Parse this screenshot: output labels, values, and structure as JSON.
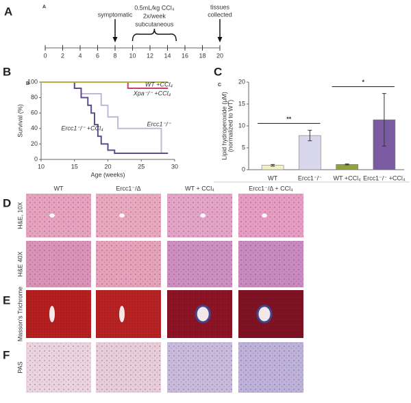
{
  "panel_labels": {
    "A": "A",
    "A_small": "A",
    "B": "B",
    "B_small": "B",
    "C": "C",
    "C_small": "C",
    "D": "D",
    "E": "E",
    "F": "F"
  },
  "timeline": {
    "xlim": [
      0,
      20
    ],
    "xticks": [
      0,
      2,
      4,
      6,
      8,
      10,
      12,
      14,
      16,
      18,
      20
    ],
    "events": [
      {
        "lines": [
          "symptomatic"
        ],
        "at": 8
      },
      {
        "lines": [
          "tissues",
          "collected"
        ],
        "at": 20
      }
    ],
    "treatment": {
      "lines": [
        "0.5mL/kg CCl₄",
        "2x/week",
        "subcutaneous"
      ],
      "from": 10,
      "to": 15
    }
  },
  "chart_data": [
    {
      "type": "line",
      "step": true,
      "xlabel": "Age (weeks)",
      "ylabel": "Survival (%)",
      "xlim": [
        10,
        30
      ],
      "xticks": [
        10,
        15,
        20,
        25,
        30
      ],
      "ylim": [
        0,
        100
      ],
      "yticks": [
        0,
        20,
        40,
        60,
        80,
        100
      ],
      "series": [
        {
          "name": "WT +CCl₄",
          "color": "#b3b13a",
          "x": [
            10,
            29
          ],
          "values": [
            100,
            100
          ]
        },
        {
          "name": "Xpa⁻/⁻ +CCl₄",
          "color": "#c3406e",
          "x": [
            10,
            23,
            23,
            29
          ],
          "values": [
            100,
            100,
            92,
            92
          ]
        },
        {
          "name": "Ercc1⁻/⁻",
          "color": "#bdb8dc",
          "x": [
            10,
            15,
            15,
            16,
            16,
            19,
            19,
            20,
            20,
            21.5,
            21.5,
            28,
            28,
            29
          ],
          "values": [
            100,
            100,
            92,
            92,
            85,
            85,
            70,
            70,
            55,
            55,
            40,
            40,
            8,
            8
          ]
        },
        {
          "name": "Ercc1⁻/⁻ +CCl₄",
          "color": "#5d4b8e",
          "x": [
            10,
            15,
            15,
            16,
            16,
            17,
            17,
            17.5,
            17.5,
            18,
            18,
            18.5,
            18.5,
            19,
            19,
            20,
            20,
            21,
            21,
            29
          ],
          "values": [
            100,
            100,
            92,
            92,
            80,
            80,
            70,
            70,
            60,
            60,
            45,
            45,
            30,
            30,
            20,
            20,
            12,
            12,
            8,
            8
          ]
        }
      ]
    },
    {
      "type": "bar",
      "ylabel": [
        "Lipid hydroperoxide (μM)",
        "(normalized to WT)"
      ],
      "categories": [
        "WT",
        "Ercc1⁻/⁻",
        "WT +CCl₄",
        "Ercc1⁻/⁻ +CCl₄"
      ],
      "values": [
        1.0,
        7.8,
        1.2,
        11.4
      ],
      "errors": [
        0.2,
        1.2,
        0.1,
        6.0
      ],
      "colors": [
        "#f1f1c4",
        "#d9d7eb",
        "#8ea33b",
        "#7a5aa0"
      ],
      "ylim": [
        0,
        20
      ],
      "yticks": [
        0,
        5,
        10,
        15,
        20
      ],
      "significance": [
        {
          "text": "**",
          "between": [
            0,
            1
          ]
        },
        {
          "text": "*",
          "between": [
            2,
            3
          ]
        }
      ]
    }
  ],
  "histology": {
    "columns": [
      "WT",
      "Ercc1⁻/Δ",
      "WT + CCl₄",
      "Ercc1⁻/Δ + CCl₄"
    ],
    "rows": [
      "H&E, 10X",
      "H&E  40X",
      "Masson's Trichrome",
      "PAS"
    ]
  }
}
